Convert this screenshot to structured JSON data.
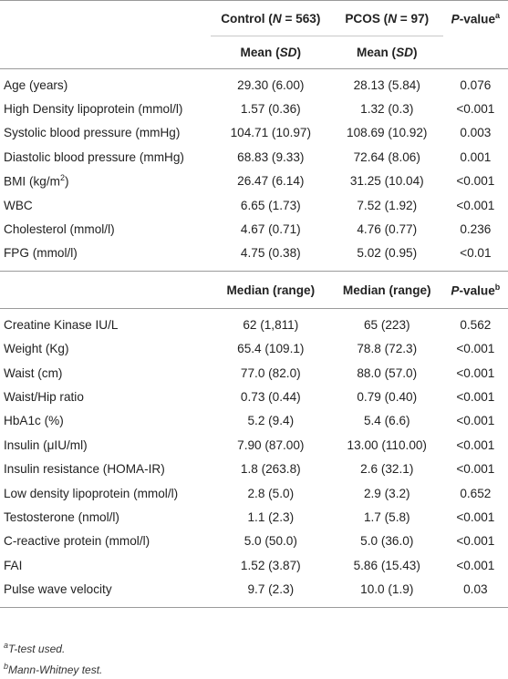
{
  "header": {
    "control_label": "Control (",
    "control_n": "N",
    "control_eq": " = 563)",
    "pcos_label": "PCOS (",
    "pcos_n": "N",
    "pcos_eq": " = 97)",
    "pvalue_p": "P",
    "pvalue_rest": "-value",
    "pvalue_sup": "a",
    "mean_label": "Mean (",
    "sd_label": "SD",
    "close_paren": ")",
    "median_label": "Median (range)",
    "pvalue2_sup": "b"
  },
  "mean_rows": [
    {
      "variable": "Age (years)",
      "control": "29.30 (6.00)",
      "pcos": "28.13 (5.84)",
      "p": "0.076"
    },
    {
      "variable": "High Density lipoprotein (mmol/l)",
      "control": "1.57 (0.36)",
      "pcos": "1.32 (0.3)",
      "p": "<0.001"
    },
    {
      "variable": "Systolic blood pressure (mmHg)",
      "control": "104.71 (10.97)",
      "pcos": "108.69 (10.92)",
      "p": "0.003"
    },
    {
      "variable": "Diastolic blood pressure (mmHg)",
      "control": "68.83 (9.33)",
      "pcos": "72.64 (8.06)",
      "p": "0.001"
    },
    {
      "variable": "BMI (kg/m",
      "variable_sup": "2",
      "variable_end": ")",
      "control": "26.47 (6.14)",
      "pcos": "31.25 (10.04)",
      "p": "<0.001"
    },
    {
      "variable": "WBC",
      "control": "6.65 (1.73)",
      "pcos": "7.52 (1.92)",
      "p": "<0.001"
    },
    {
      "variable": "Cholesterol (mmol/l)",
      "control": "4.67 (0.71)",
      "pcos": "4.76 (0.77)",
      "p": "0.236"
    },
    {
      "variable": "FPG (mmol/l)",
      "control": "4.75 (0.38)",
      "pcos": "5.02 (0.95)",
      "p": "<0.01"
    }
  ],
  "median_rows": [
    {
      "variable": "Creatine Kinase IU/L",
      "control": "62 (1,811)",
      "pcos": "65 (223)",
      "p": "0.562"
    },
    {
      "variable": "Weight (Kg)",
      "control": "65.4 (109.1)",
      "pcos": "78.8 (72.3)",
      "p": "<0.001"
    },
    {
      "variable": "Waist (cm)",
      "control": "77.0 (82.0)",
      "pcos": "88.0 (57.0)",
      "p": "<0.001"
    },
    {
      "variable": "Waist/Hip ratio",
      "control": "0.73 (0.44)",
      "pcos": "0.79 (0.40)",
      "p": "<0.001"
    },
    {
      "variable": "HbA1c (%)",
      "control": "5.2 (9.4)",
      "pcos": "5.4 (6.6)",
      "p": "<0.001"
    },
    {
      "variable": "Insulin (μIU/ml)",
      "control": "7.90 (87.00)",
      "pcos": "13.00 (110.00)",
      "p": "<0.001"
    },
    {
      "variable": "Insulin resistance (HOMA-IR)",
      "control": "1.8 (263.8)",
      "pcos": "2.6 (32.1)",
      "p": "<0.001"
    },
    {
      "variable": "Low density lipoprotein (mmol/l)",
      "control": "2.8 (5.0)",
      "pcos": "2.9 (3.2)",
      "p": "0.652"
    },
    {
      "variable": "Testosterone (nmol/l)",
      "control": "1.1 (2.3)",
      "pcos": "1.7 (5.8)",
      "p": "<0.001"
    },
    {
      "variable": "C-reactive protein (mmol/l)",
      "control": "5.0 (50.0)",
      "pcos": "5.0 (36.0)",
      "p": "<0.001"
    },
    {
      "variable": "FAI",
      "control": "1.52 (3.87)",
      "pcos": "5.86 (15.43)",
      "p": "<0.001"
    },
    {
      "variable": "Pulse wave velocity",
      "control": "9.7 (2.3)",
      "pcos": "10.0 (1.9)",
      "p": "0.03"
    }
  ],
  "footnotes": {
    "a_marker": "a",
    "a_text": "T-test used.",
    "b_marker": "b",
    "b_text": "Mann-Whitney test."
  }
}
